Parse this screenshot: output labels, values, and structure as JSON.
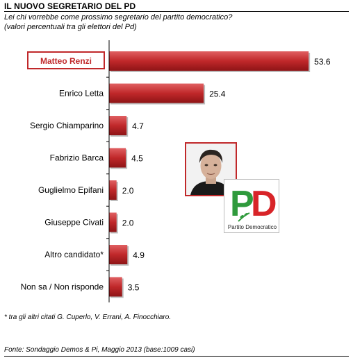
{
  "header": {
    "title": "IL NUOVO SEGRETARIO DEL PD",
    "subtitle_line1": "Lei chi vorrebbe come prossimo segretario del partito democratico?",
    "subtitle_line2": "(valori percentuali tra gli elettori del Pd)"
  },
  "chart_data": {
    "type": "bar",
    "orientation": "horizontal",
    "categories": [
      "Matteo Renzi",
      "Enrico Letta",
      "Sergio Chiamparino",
      "Fabrizio Barca",
      "Guglielmo Epifani",
      "Giuseppe Civati",
      "Altro candidato*",
      "Non sa / Non risponde"
    ],
    "values": [
      53.6,
      25.4,
      4.7,
      4.5,
      2.0,
      2.0,
      4.9,
      3.5
    ],
    "value_labels": [
      "53.6",
      "25.4",
      "4.7",
      "4.5",
      "2.0",
      "2.0",
      "4.9",
      "3.5"
    ],
    "highlighted_category": "Matteo Renzi",
    "xlim": [
      0,
      56
    ],
    "grid": false,
    "bar_color": "#c0282a",
    "highlight_color": "#c0282a"
  },
  "footnote": "* tra gli altri citati G. Cuperlo, V. Errani, A. Finocchiaro.",
  "source": "Fonte: Sondaggio Demos & Pi, Maggio 2013 (base:1009 casi)",
  "logo": {
    "letters": "PD",
    "text": "Partito Democratico",
    "icon": "olive-branch-icon"
  },
  "photo": {
    "icon": "portrait-photo"
  }
}
